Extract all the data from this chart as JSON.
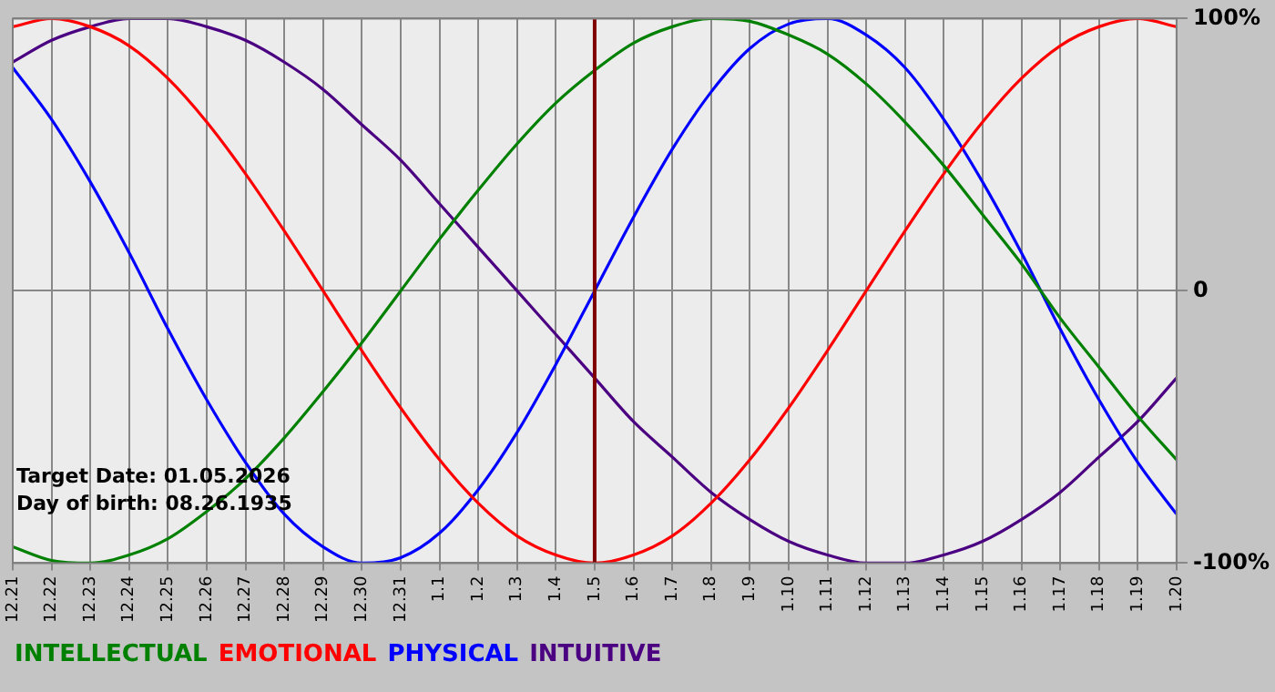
{
  "chart_data": {
    "type": "line",
    "categories": [
      "12.21",
      "12.22",
      "12.23",
      "12.24",
      "12.25",
      "12.26",
      "12.27",
      "12.28",
      "12.29",
      "12.30",
      "12.31",
      "1.1",
      "1.2",
      "1.3",
      "1.4",
      "1.5",
      "1.6",
      "1.7",
      "1.8",
      "1.9",
      "1.10",
      "1.11",
      "1.12",
      "1.13",
      "1.14",
      "1.15",
      "1.16",
      "1.17",
      "1.18",
      "1.19",
      "1.20"
    ],
    "series": [
      {
        "name": "INTELLECTUAL",
        "color": "#008000",
        "values": [
          -94,
          -99,
          -100,
          -97,
          -91,
          -81,
          -69,
          -54,
          -37,
          -19,
          0,
          19,
          37,
          54,
          69,
          81,
          91,
          97,
          100,
          99,
          94,
          87,
          76,
          62,
          46,
          28,
          10,
          -10,
          -28,
          -46,
          -62
        ]
      },
      {
        "name": "EMOTIONAL",
        "color": "#ff0000",
        "values": [
          97,
          100,
          97,
          90,
          78,
          62,
          43,
          22,
          0,
          -22,
          -43,
          -62,
          -78,
          -90,
          -97,
          -100,
          -97,
          -90,
          -78,
          -62,
          -43,
          -22,
          0,
          22,
          43,
          62,
          78,
          90,
          97,
          100,
          97
        ]
      },
      {
        "name": "PHYSICAL",
        "color": "#0000ff",
        "values": [
          82,
          63,
          40,
          14,
          -14,
          -40,
          -63,
          -82,
          -94,
          -100,
          -98,
          -89,
          -73,
          -52,
          -27,
          0,
          27,
          52,
          73,
          89,
          98,
          100,
          94,
          82,
          63,
          40,
          14,
          -14,
          -40,
          -63,
          -82
        ]
      },
      {
        "name": "INTUITIVE",
        "color": "#4b0082",
        "values": [
          84,
          92,
          97,
          100,
          100,
          97,
          92,
          84,
          74,
          61,
          48,
          32,
          16,
          0,
          -16,
          -32,
          -48,
          -61,
          -74,
          -84,
          -92,
          -97,
          -100,
          -100,
          -97,
          -92,
          -84,
          -74,
          -61,
          -48,
          -32
        ]
      }
    ],
    "ylim": [
      -100,
      100
    ],
    "yticks": [
      {
        "value": -100,
        "label": "-100%"
      },
      0,
      {
        "value": 100,
        "label": "100%"
      }
    ],
    "ref_lines": [
      {
        "axis": "x",
        "value": "1.5",
        "color": "#800000"
      }
    ],
    "annotations": [
      "Target Date: 01.05.2026",
      "Day of birth: 08.26.1935"
    ],
    "grid": true,
    "legend": "bottom"
  }
}
